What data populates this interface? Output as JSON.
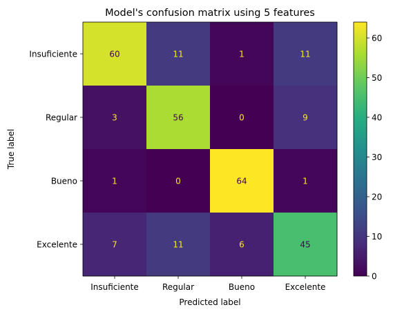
{
  "chart_data": {
    "type": "heatmap",
    "title": "Model's confusion matrix using 5 features",
    "xlabel": "Predicted label",
    "ylabel": "True label",
    "x_categories": [
      "Insuficiente",
      "Regular",
      "Bueno",
      "Excelente"
    ],
    "y_categories": [
      "Insuficiente",
      "Regular",
      "Bueno",
      "Excelente"
    ],
    "matrix": [
      [
        60,
        11,
        1,
        11
      ],
      [
        3,
        56,
        0,
        9
      ],
      [
        1,
        0,
        64,
        1
      ],
      [
        7,
        11,
        6,
        45
      ]
    ],
    "colormap": "viridis",
    "colorbar": {
      "min": 0,
      "max": 64,
      "ticks": [
        "0",
        "10",
        "20",
        "30",
        "40",
        "50",
        "60"
      ]
    },
    "grid": false
  }
}
